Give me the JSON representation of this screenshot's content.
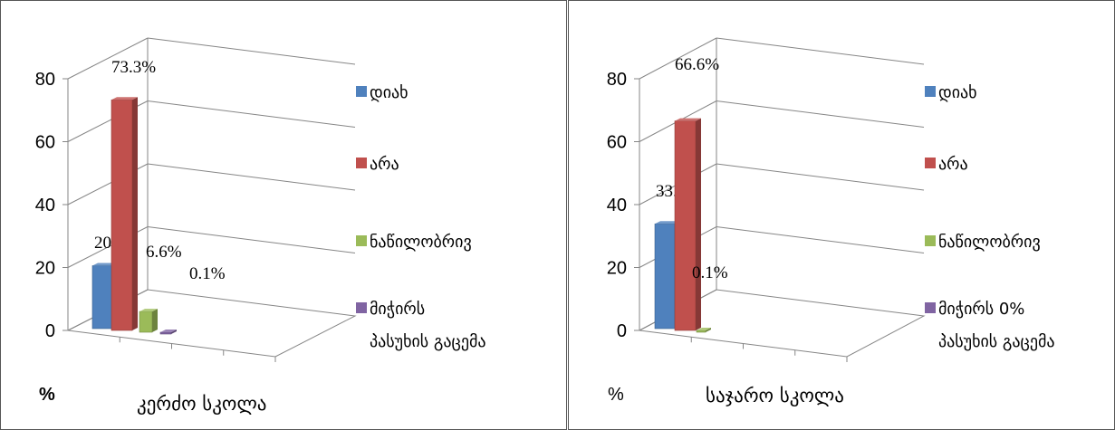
{
  "chart_data": [
    {
      "type": "bar",
      "title": "კერძო სკოლა",
      "unit_label": "%",
      "unit_bold": true,
      "ylim": [
        0,
        80
      ],
      "yticks": [
        "0",
        "20",
        "40",
        "60",
        "80"
      ],
      "grid": true,
      "legend_position": "right",
      "categories": [
        "დიახ",
        "არა",
        "ნაწილობრივ",
        "მიჭირს პასუხის გაცემა"
      ],
      "series": [
        {
          "name": "დიახ",
          "color": "#4F81BD",
          "value": 20,
          "label": "20%"
        },
        {
          "name": "არა",
          "color": "#C0504D",
          "value": 73.3,
          "label": "73.3%"
        },
        {
          "name": "ნაწილობრივ",
          "color": "#9BBB59",
          "value": 6.6,
          "label": "6.6%"
        },
        {
          "name": "მიჭირს პასუხის გაცემა",
          "color": "#8064A2",
          "value": 0.1,
          "label": "0.1%"
        }
      ],
      "legend": [
        {
          "lines": [
            "დიახ"
          ],
          "color": "#4F81BD"
        },
        {
          "lines": [
            "არა"
          ],
          "color": "#C0504D"
        },
        {
          "lines": [
            "ნაწილობრივ"
          ],
          "color": "#9BBB59"
        },
        {
          "lines": [
            "მიჭირს",
            "პასუხის გაცემა"
          ],
          "color": "#8064A2"
        }
      ]
    },
    {
      "type": "bar",
      "title": "საჯარო სკოლა",
      "unit_label": "%",
      "unit_bold": false,
      "ylim": [
        0,
        80
      ],
      "yticks": [
        "0",
        "20",
        "40",
        "60",
        "80"
      ],
      "grid": true,
      "legend_position": "right",
      "categories": [
        "დიახ",
        "არა",
        "ნაწილობრივ",
        "მიჭირს პასუხის გაცემა"
      ],
      "series": [
        {
          "name": "დიახ",
          "color": "#4F81BD",
          "value": 33.3,
          "label": "33.3%"
        },
        {
          "name": "არა",
          "color": "#C0504D",
          "value": 66.6,
          "label": "66.6%"
        },
        {
          "name": "ნაწილობრივ",
          "color": "#9BBB59",
          "value": 0.1,
          "label": "0.1%"
        },
        {
          "name": "მიჭირს პასუხის გაცემა",
          "color": "#8064A2",
          "value": 0,
          "label": ""
        }
      ],
      "legend": [
        {
          "lines": [
            "დიახ"
          ],
          "color": "#4F81BD"
        },
        {
          "lines": [
            "არა"
          ],
          "color": "#C0504D"
        },
        {
          "lines": [
            "ნაწილობრივ"
          ],
          "color": "#9BBB59"
        },
        {
          "lines": [
            "მიჭირს 0%",
            "პასუხის გაცემა"
          ],
          "color": "#8064A2"
        }
      ]
    }
  ]
}
